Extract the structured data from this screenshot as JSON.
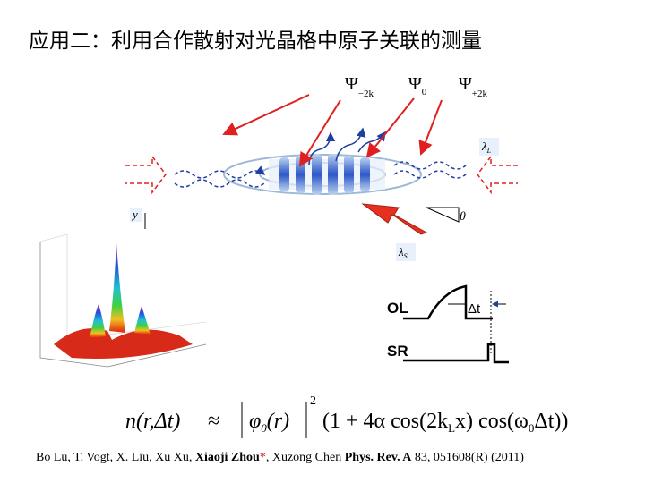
{
  "title": "应用二：利用合作散射对光晶格中原子关联的测量",
  "diagram": {
    "psi_labels": [
      {
        "symbol": "Ψ",
        "sub": "−2k"
      },
      {
        "symbol": "Ψ",
        "sub": "0"
      },
      {
        "symbol": "Ψ",
        "sub": "+2k"
      }
    ],
    "lambda_l": {
      "symbol": "λ",
      "sub": "L"
    },
    "lambda_s": {
      "symbol": "λ",
      "sub": "S"
    },
    "y_label": "y",
    "theta": "θ"
  },
  "timing": {
    "ol": "OL",
    "dt": "Δt",
    "sr": "SR"
  },
  "formula": {
    "lhs": "n(r,Δt)",
    "approx": "≈",
    "phi": "φ",
    "phi_sub": "0",
    "phi_arg": "(r)",
    "power": "2",
    "rhs_a": "(1 + 4α cos(2k",
    "rhs_sub_l": "L",
    "rhs_b": "x) cos(ω",
    "rhs_sub_0": "0",
    "rhs_c": "Δt))"
  },
  "citation": {
    "authors": "Bo Lu, T. Vogt, X. Liu, Xu Xu, ",
    "corresponding": "Xiaoji Zhou",
    "star": "*",
    "rest": ", Xuzong Chen ",
    "journal": "Phys. Rev. A",
    "ref": " 83, 051608(R) (2011)"
  }
}
